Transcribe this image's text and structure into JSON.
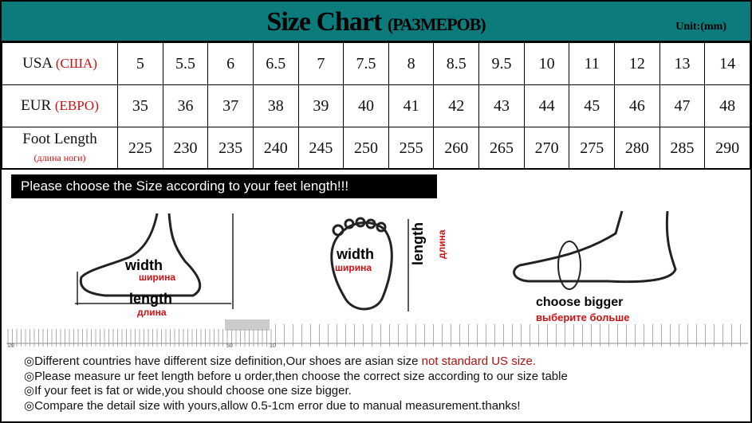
{
  "header": {
    "title": "Size Chart",
    "title_sub": "(РАЗМЕРОВ)",
    "unit": "Unit:(mm)",
    "bg_color": "#0b7b7b"
  },
  "rows": [
    {
      "label": "USA",
      "label_ru": "(США)",
      "values": [
        "5",
        "5.5",
        "6",
        "6.5",
        "7",
        "7.5",
        "8",
        "8.5",
        "9.5",
        "10",
        "11",
        "12",
        "13",
        "14"
      ]
    },
    {
      "label": "EUR",
      "label_ru": "(ЕВРО)",
      "values": [
        "35",
        "36",
        "37",
        "38",
        "39",
        "40",
        "41",
        "42",
        "43",
        "44",
        "45",
        "46",
        "47",
        "48"
      ]
    },
    {
      "label": "Foot Length",
      "label_ru": "(длина ноги)",
      "values": [
        "225",
        "230",
        "235",
        "240",
        "245",
        "250",
        "255",
        "260",
        "265",
        "270",
        "275",
        "280",
        "285",
        "290"
      ]
    }
  ],
  "banner": "Please choose the Size according to your feet length!!!",
  "diagrams": {
    "side": {
      "width": "width",
      "width_ru": "ширина",
      "length": "length",
      "length_ru": "длина"
    },
    "top": {
      "width": "width",
      "width_ru": "ширина",
      "length": "length",
      "length_ru": "длина"
    },
    "bigger": {
      "label": "choose bigger",
      "label_ru": "выберите больше"
    }
  },
  "ruler": {
    "labels": [
      "20",
      "50",
      "10"
    ]
  },
  "notes": [
    {
      "text": "Different countries have different size definition,Our shoes are asian size ",
      "highlight": "not standard US size."
    },
    {
      "text": "Please measure ur feet length before u order,then choose the correct size according to our size table"
    },
    {
      "text": "If your feet is fat or wide,you should choose one size bigger."
    },
    {
      "text": "Compare the detail size with yours,allow 0.5-1cm error due to manual measurement.thanks!"
    }
  ],
  "bullet": "◎"
}
